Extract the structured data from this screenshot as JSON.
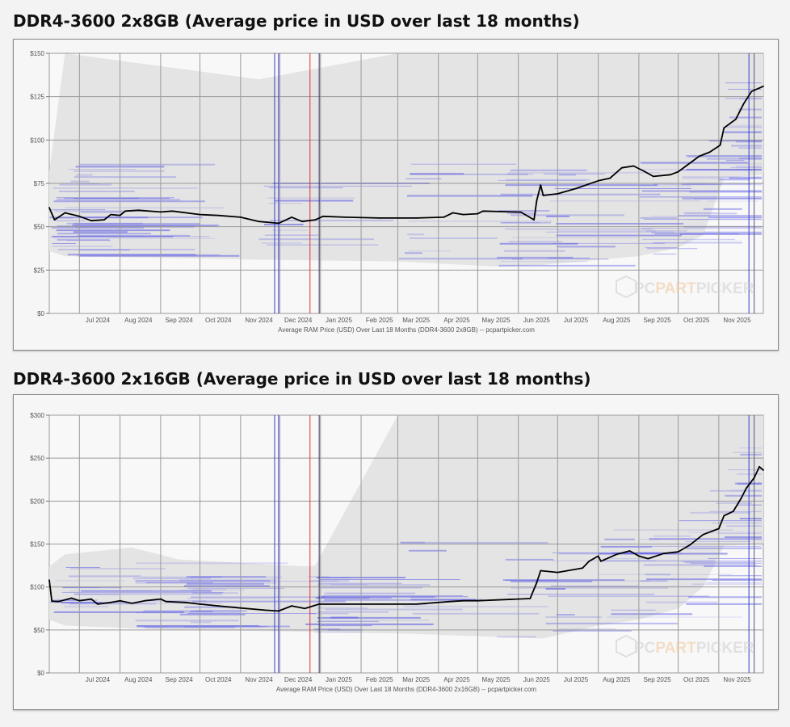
{
  "charts_meta": [
    {
      "heading": "DDR4-3600 2x8GB (Average price in USD over last 18 months)"
    },
    {
      "heading": "DDR4-3600 2x16GB (Average price in USD over last 18 months)"
    }
  ],
  "watermark": {
    "brand_prefix": "PC",
    "brand_mid": "PART",
    "brand_suffix": "PICKER"
  },
  "colors": {
    "price_line": "#000000",
    "listing_lines": "#5a5ae6",
    "range_fill": "#e4e4e4",
    "grid": "#9a9a9a",
    "marker_blue": "#3a3acc",
    "marker_red": "#e03030",
    "marker_dark": "#333355",
    "watermark_orange": "#f0c69a"
  },
  "chart_data": [
    {
      "type": "line",
      "title": "DDR4-3600 2x8GB (Average price in USD over last 18 months)",
      "xlabel": "Average RAM Price (USD) Over Last 18 Months (DDR4-3600 2x8GB) -- pcpartpicker.com",
      "ylabel": "",
      "xlim": [
        "2024-06-08",
        "2025-12-05"
      ],
      "ylim": [
        0,
        150
      ],
      "yticks": [
        0,
        25,
        50,
        75,
        100,
        125,
        150
      ],
      "ytick_labels": [
        "$0",
        "$25",
        "$50",
        "$75",
        "$100",
        "$125",
        "$150"
      ],
      "xtick_labels": [
        "Jul 2024",
        "Aug 2024",
        "Sep 2024",
        "Oct 2024",
        "Nov 2024",
        "Dec 2024",
        "Jan 2025",
        "Feb 2025",
        "Mar 2025",
        "Apr 2025",
        "May 2025",
        "Jun 2025",
        "Jul 2025",
        "Aug 2025",
        "Sep 2025",
        "Oct 2025",
        "Nov 2025"
      ],
      "grid": true,
      "markers": [
        {
          "date": "2024-11-27",
          "color": "#3a3acc"
        },
        {
          "date": "2024-11-30",
          "color": "#3a3acc"
        },
        {
          "date": "2024-12-24",
          "color": "#e03030"
        },
        {
          "date": "2024-12-31",
          "color": "#333355"
        },
        {
          "date": "2025-11-24",
          "color": "#3a3acc"
        },
        {
          "date": "2025-11-28",
          "color": "#555577"
        }
      ],
      "range_band": {
        "dates": [
          "2024-06-08",
          "2024-06-20",
          "2024-11-15",
          "2025-03-01",
          "2025-05-15",
          "2025-06-20",
          "2025-09-01",
          "2025-10-01",
          "2025-10-20",
          "2025-11-05",
          "2025-12-05"
        ],
        "low": [
          36,
          33,
          31,
          30,
          27,
          28,
          33,
          38,
          45,
          78,
          80
        ],
        "high": [
          82,
          150,
          135,
          150,
          150,
          150,
          150,
          150,
          150,
          150,
          150
        ]
      },
      "series": [
        {
          "dates": [
            "2024-06-08",
            "2024-06-12",
            "2024-06-20",
            "2024-07-01",
            "2024-07-10",
            "2024-07-20",
            "2024-07-25",
            "2024-08-01",
            "2024-08-05",
            "2024-08-15",
            "2024-09-01",
            "2024-09-10",
            "2024-10-01",
            "2024-10-15",
            "2024-11-01",
            "2024-11-15",
            "2024-11-30",
            "2024-12-10",
            "2024-12-18",
            "2024-12-28",
            "2025-01-03",
            "2025-01-20",
            "2025-02-15",
            "2025-03-15",
            "2025-04-05",
            "2025-04-12",
            "2025-04-20",
            "2025-05-01",
            "2025-05-05",
            "2025-06-03",
            "2025-06-13",
            "2025-06-15",
            "2025-06-18",
            "2025-06-20",
            "2025-07-01",
            "2025-07-15",
            "2025-08-01",
            "2025-08-10",
            "2025-08-19",
            "2025-08-28",
            "2025-09-05",
            "2025-09-12",
            "2025-09-25",
            "2025-10-01",
            "2025-10-17",
            "2025-10-25",
            "2025-11-02",
            "2025-11-05",
            "2025-11-14",
            "2025-11-20",
            "2025-11-26",
            "2025-12-05"
          ],
          "values": [
            61,
            54,
            58,
            56,
            53.5,
            54,
            57,
            56.5,
            59,
            59.5,
            58.5,
            59,
            57,
            56.5,
            55.5,
            53,
            52,
            55.5,
            53,
            54,
            56,
            55.5,
            55,
            55,
            55.5,
            58,
            57,
            57.5,
            59,
            58.4,
            54,
            65,
            74,
            68,
            69,
            72,
            76.5,
            78,
            84,
            85,
            82,
            79,
            80,
            81.7,
            90.6,
            93,
            97,
            107,
            112,
            121,
            128,
            131
          ]
        }
      ]
    },
    {
      "type": "line",
      "title": "DDR4-3600 2x16GB (Average price in USD over last 18 months)",
      "xlabel": "Average RAM Price (USD) Over Last 18 Months (DDR4-3600 2x16GB) -- pcpartpicker.com",
      "ylabel": "",
      "xlim": [
        "2024-06-08",
        "2025-12-05"
      ],
      "ylim": [
        0,
        300
      ],
      "yticks": [
        0,
        50,
        100,
        150,
        200,
        250,
        300
      ],
      "ytick_labels": [
        "$0",
        "$50",
        "$100",
        "$150",
        "$200",
        "$250",
        "$300"
      ],
      "xtick_labels": [
        "Jul 2024",
        "Aug 2024",
        "Sep 2024",
        "Oct 2024",
        "Nov 2024",
        "Dec 2024",
        "Jan 2025",
        "Feb 2025",
        "Mar 2025",
        "Apr 2025",
        "May 2025",
        "Jun 2025",
        "Jul 2025",
        "Aug 2025",
        "Sep 2025",
        "Oct 2025",
        "Nov 2025"
      ],
      "grid": true,
      "markers": [
        {
          "date": "2024-11-27",
          "color": "#3a3acc"
        },
        {
          "date": "2024-11-30",
          "color": "#3a3acc"
        },
        {
          "date": "2024-12-24",
          "color": "#e03030"
        },
        {
          "date": "2024-12-31",
          "color": "#333355"
        },
        {
          "date": "2025-11-24",
          "color": "#3a3acc"
        },
        {
          "date": "2025-11-28",
          "color": "#555577"
        }
      ],
      "range_band": {
        "dates": [
          "2024-06-08",
          "2024-06-20",
          "2024-08-10",
          "2024-09-15",
          "2024-12-20",
          "2024-12-28",
          "2025-03-01",
          "2025-05-15",
          "2025-06-20",
          "2025-08-01",
          "2025-09-01",
          "2025-10-01",
          "2025-10-20",
          "2025-11-05",
          "2025-12-05"
        ],
        "low": [
          62,
          55,
          52,
          50,
          48,
          47,
          46,
          42,
          40,
          55,
          62,
          75,
          100,
          148,
          150
        ],
        "high": [
          124,
          138,
          146,
          132,
          124,
          125,
          300,
          300,
          300,
          300,
          300,
          300,
          300,
          300,
          300
        ]
      },
      "series": [
        {
          "dates": [
            "2024-06-08",
            "2024-06-10",
            "2024-06-15",
            "2024-06-25",
            "2024-07-01",
            "2024-07-10",
            "2024-07-15",
            "2024-07-25",
            "2024-08-01",
            "2024-08-10",
            "2024-08-20",
            "2024-09-01",
            "2024-09-05",
            "2024-09-20",
            "2024-10-01",
            "2024-10-15",
            "2024-11-01",
            "2024-11-20",
            "2024-11-30",
            "2024-12-10",
            "2024-12-20",
            "2024-12-31",
            "2025-01-05",
            "2025-02-15",
            "2025-03-15",
            "2025-04-10",
            "2025-04-20",
            "2025-05-01",
            "2025-06-01",
            "2025-06-10",
            "2025-06-15",
            "2025-06-18",
            "2025-07-01",
            "2025-07-20",
            "2025-07-25",
            "2025-08-01",
            "2025-08-03",
            "2025-08-15",
            "2025-08-25",
            "2025-09-01",
            "2025-09-08",
            "2025-09-20",
            "2025-10-01",
            "2025-10-10",
            "2025-10-20",
            "2025-11-01",
            "2025-11-05",
            "2025-11-12",
            "2025-11-18",
            "2025-11-22",
            "2025-11-28",
            "2025-12-02",
            "2025-12-05"
          ],
          "values": [
            108,
            83.5,
            83,
            87,
            84,
            86,
            80,
            82,
            84,
            81,
            84,
            86,
            83,
            82,
            80,
            78,
            75.5,
            73,
            72,
            78,
            75,
            80,
            80,
            80,
            80,
            83,
            84,
            84,
            86,
            86.5,
            105,
            119,
            117,
            122,
            130,
            136,
            130,
            138,
            142,
            136,
            133,
            139,
            141,
            149,
            161,
            168,
            183,
            188,
            203,
            215,
            227,
            240,
            236
          ]
        }
      ]
    }
  ]
}
